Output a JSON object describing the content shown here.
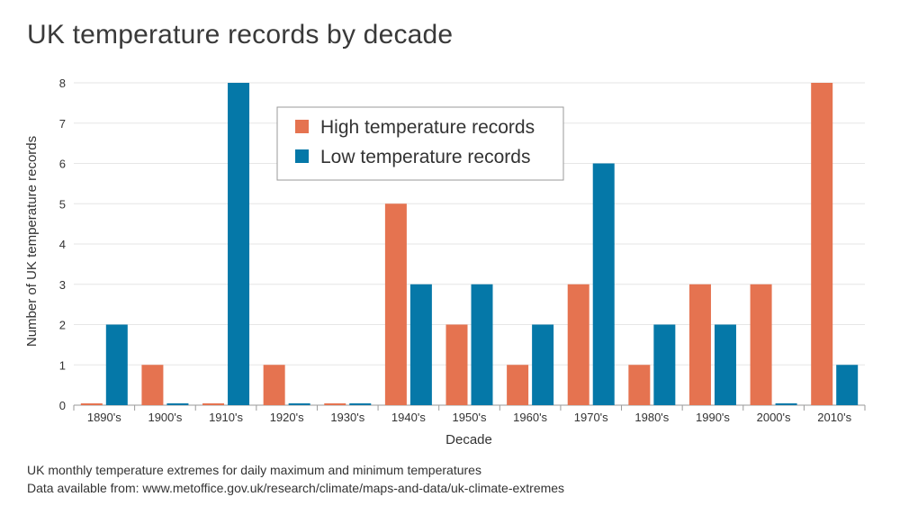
{
  "chart_data": {
    "type": "bar",
    "title": "UK temperature records by decade",
    "xlabel": "Decade",
    "ylabel": "Number of UK temperature records",
    "ylim": [
      0,
      8
    ],
    "yticks": [
      0,
      1,
      2,
      3,
      4,
      5,
      6,
      7,
      8
    ],
    "grid": true,
    "legend_position": "top-center",
    "categories": [
      "1890's",
      "1900's",
      "1910's",
      "1920's",
      "1930's",
      "1940's",
      "1950's",
      "1960's",
      "1970's",
      "1980's",
      "1990's",
      "2000's",
      "2010's"
    ],
    "series": [
      {
        "name": "High temperature records",
        "color": "#e57350",
        "values": [
          0,
          1,
          0,
          1,
          0,
          5,
          2,
          1,
          3,
          1,
          3,
          3,
          8
        ]
      },
      {
        "name": "Low temperature records",
        "color": "#0578a8",
        "values": [
          2,
          0,
          8,
          0,
          0,
          3,
          3,
          2,
          6,
          2,
          2,
          0,
          1
        ]
      }
    ]
  },
  "footnotes": {
    "line1": "UK monthly temperature extremes for daily maximum and minimum temperatures",
    "line2": "Data available from: www.metoffice.gov.uk/research/climate/maps-and-data/uk-climate-extremes"
  }
}
